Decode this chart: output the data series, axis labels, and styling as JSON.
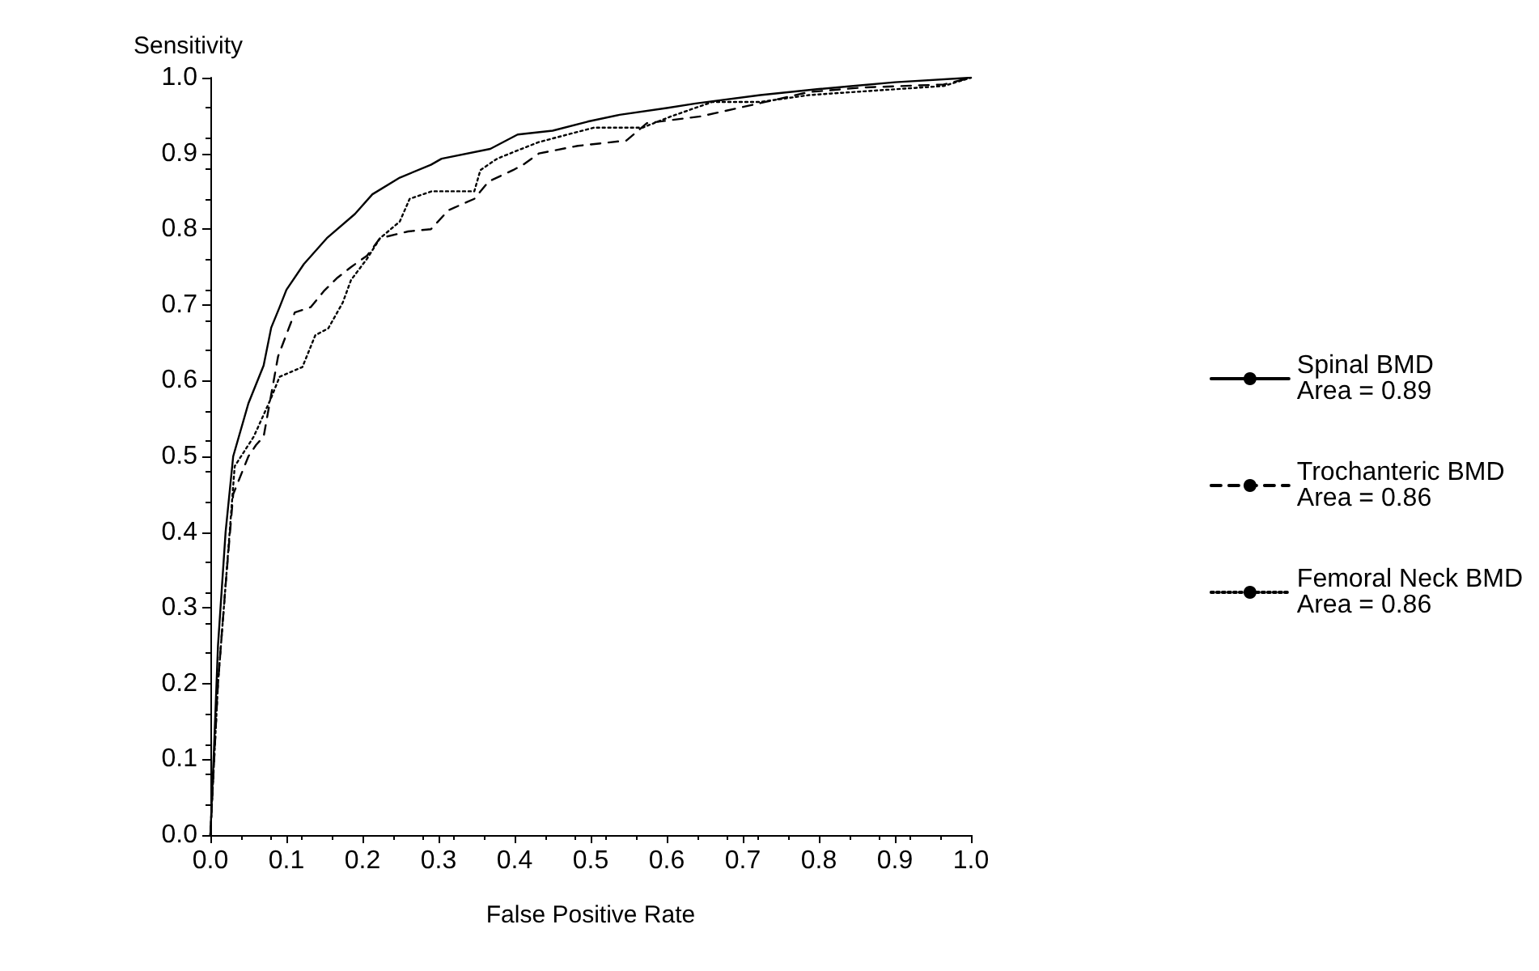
{
  "chart_data": {
    "type": "line",
    "xlabel": "False Positive Rate",
    "ylabel": "Sensitivity",
    "xlim": [
      0,
      1
    ],
    "ylim": [
      0,
      1
    ],
    "xticks": [
      {
        "value": 0,
        "label": "0.0"
      },
      {
        "value": 0.1,
        "label": "0.1"
      },
      {
        "value": 0.2,
        "label": "0.2"
      },
      {
        "value": 0.3,
        "label": "0.3"
      },
      {
        "value": 0.4,
        "label": "0.4"
      },
      {
        "value": 0.5,
        "label": "0.5"
      },
      {
        "value": 0.6,
        "label": "0.6"
      },
      {
        "value": 0.7,
        "label": "0.7"
      },
      {
        "value": 0.8,
        "label": "0.8"
      },
      {
        "value": 0.9,
        "label": "0.9"
      },
      {
        "value": 1,
        "label": "1.0"
      }
    ],
    "yticks": [
      {
        "value": 0,
        "label": "0.0"
      },
      {
        "value": 0.1,
        "label": "0.1"
      },
      {
        "value": 0.2,
        "label": "0.2"
      },
      {
        "value": 0.3,
        "label": "0.3"
      },
      {
        "value": 0.4,
        "label": "0.4"
      },
      {
        "value": 0.5,
        "label": "0.5"
      },
      {
        "value": 0.6,
        "label": "0.6"
      },
      {
        "value": 0.7,
        "label": "0.7"
      },
      {
        "value": 0.8,
        "label": "0.8"
      },
      {
        "value": 0.9,
        "label": "0.9"
      },
      {
        "value": 1,
        "label": "1.0"
      }
    ],
    "grid": false,
    "legend": "right",
    "marker": "none",
    "series": [
      {
        "name": "Spinal BMD\nArea = 0.89",
        "color": "#000000",
        "line_style": "solid",
        "x": [
          0,
          0.005,
          0.01,
          0.02,
          0.03,
          0.05,
          0.07,
          0.08,
          0.091,
          0.1,
          0.123,
          0.153,
          0.19,
          0.213,
          0.249,
          0.29,
          0.304,
          0.368,
          0.404,
          0.45,
          0.496,
          0.538,
          0.6,
          0.638,
          0.723,
          0.8,
          0.845,
          0.9,
          1
        ],
        "values": [
          0,
          0.12,
          0.25,
          0.4,
          0.5,
          0.57,
          0.62,
          0.67,
          0.697,
          0.72,
          0.754,
          0.788,
          0.82,
          0.846,
          0.868,
          0.885,
          0.893,
          0.906,
          0.925,
          0.93,
          0.942,
          0.951,
          0.96,
          0.966,
          0.977,
          0.985,
          0.989,
          0.994,
          1
        ]
      },
      {
        "name": "Trochanteric BMD\nArea = 0.86",
        "color": "#000000",
        "line_style": "dashed",
        "x": [
          0,
          0.005,
          0.01,
          0.02,
          0.03,
          0.05,
          0.06,
          0.07,
          0.089,
          0.111,
          0.132,
          0.149,
          0.166,
          0.185,
          0.206,
          0.223,
          0.26,
          0.29,
          0.313,
          0.347,
          0.366,
          0.398,
          0.411,
          0.432,
          0.483,
          0.547,
          0.574,
          0.645,
          0.73,
          0.787,
          0.857,
          0.964,
          1
        ],
        "values": [
          0,
          0.1,
          0.2,
          0.33,
          0.45,
          0.5,
          0.515,
          0.526,
          0.632,
          0.69,
          0.697,
          0.718,
          0.735,
          0.75,
          0.765,
          0.788,
          0.797,
          0.8,
          0.825,
          0.84,
          0.863,
          0.878,
          0.885,
          0.9,
          0.91,
          0.917,
          0.94,
          0.949,
          0.968,
          0.981,
          0.987,
          0.991,
          1
        ]
      },
      {
        "name": "Femoral Neck BMD\nArea = 0.86",
        "color": "#000000",
        "line_style": "dotted",
        "x": [
          0,
          0.005,
          0.01,
          0.02,
          0.032,
          0.057,
          0.079,
          0.091,
          0.121,
          0.138,
          0.155,
          0.174,
          0.185,
          0.206,
          0.223,
          0.249,
          0.262,
          0.291,
          0.347,
          0.355,
          0.377,
          0.404,
          0.432,
          0.504,
          0.568,
          0.606,
          0.66,
          0.723,
          0.787,
          0.83,
          0.964,
          1
        ],
        "values": [
          0,
          0.1,
          0.2,
          0.33,
          0.487,
          0.526,
          0.575,
          0.605,
          0.618,
          0.66,
          0.669,
          0.703,
          0.733,
          0.761,
          0.788,
          0.81,
          0.84,
          0.85,
          0.85,
          0.878,
          0.893,
          0.904,
          0.915,
          0.934,
          0.934,
          0.949,
          0.968,
          0.968,
          0.977,
          0.98,
          0.989,
          1
        ]
      }
    ]
  }
}
